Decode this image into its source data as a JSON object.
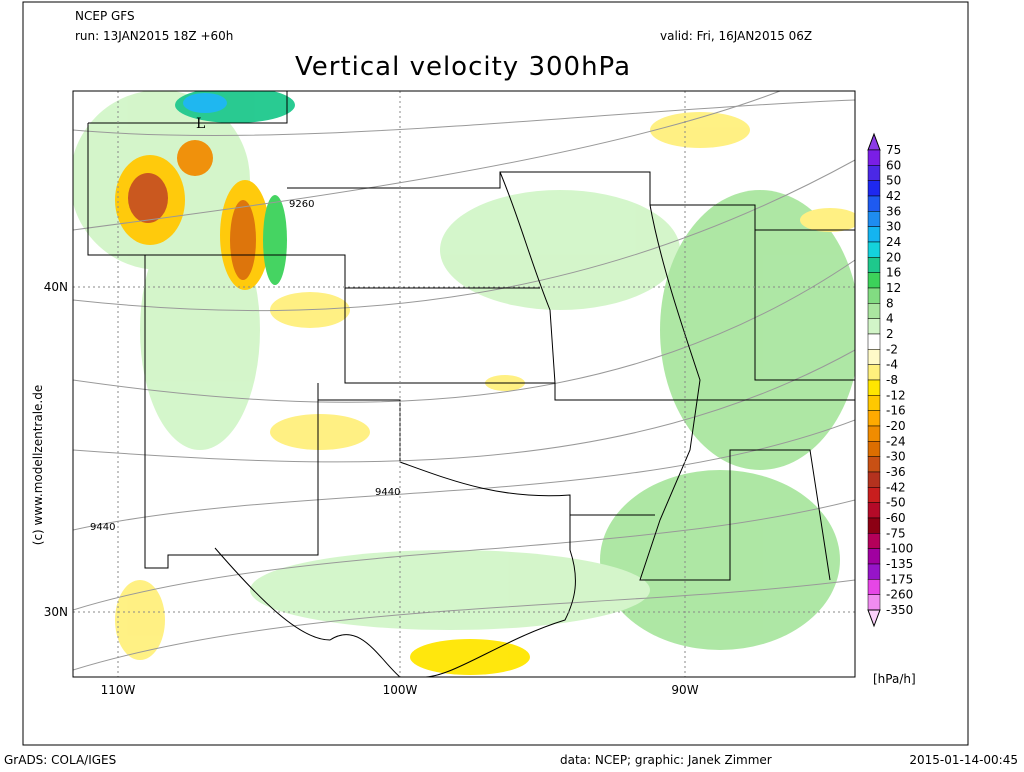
{
  "header": {
    "model": "NCEP GFS",
    "run": "run: 13JAN2015 18Z +60h",
    "valid": "valid: Fri, 16JAN2015 06Z",
    "title": "Vertical velocity 300hPa"
  },
  "map": {
    "lat_labels": [
      "40N",
      "30N"
    ],
    "lon_labels": [
      "110W",
      "100W",
      "90W"
    ],
    "contour_labels": [
      "9260",
      "9440",
      "9440"
    ],
    "low_marker": "L",
    "copyright": "(c) www.modellzentrale.de"
  },
  "colorbar": {
    "labels": [
      75,
      60,
      50,
      42,
      36,
      30,
      24,
      20,
      16,
      12,
      8,
      4,
      2,
      -2,
      -4,
      -8,
      -12,
      -16,
      -20,
      -24,
      -30,
      -36,
      -42,
      -50,
      -60,
      -75,
      -100,
      -135,
      -175,
      -260,
      -350
    ],
    "colors": [
      "#8c3ce6",
      "#7a1ee6",
      "#4b28e6",
      "#1e28f0",
      "#1e5af0",
      "#1e8cf0",
      "#14b4f0",
      "#14d2dc",
      "#1ec88c",
      "#3cd25a",
      "#82dc82",
      "#aae6a0",
      "#d2f5c8",
      "#ffffff",
      "#fffac8",
      "#fff07d",
      "#ffe600",
      "#ffc800",
      "#ffaa00",
      "#f08c00",
      "#dc6e00",
      "#c85014",
      "#b4321e",
      "#c81e1e",
      "#b40a28",
      "#8c0014",
      "#b4005a",
      "#a000a0",
      "#9614c8",
      "#e646e6",
      "#f08cf0",
      "#fad2fa"
    ],
    "unit": "[hPa/h]"
  },
  "footer": {
    "software": "GrADS: COLA/IGES",
    "credit": "data: NCEP; graphic: Janek Zimmer",
    "timestamp": "2015-01-14-00:45"
  }
}
